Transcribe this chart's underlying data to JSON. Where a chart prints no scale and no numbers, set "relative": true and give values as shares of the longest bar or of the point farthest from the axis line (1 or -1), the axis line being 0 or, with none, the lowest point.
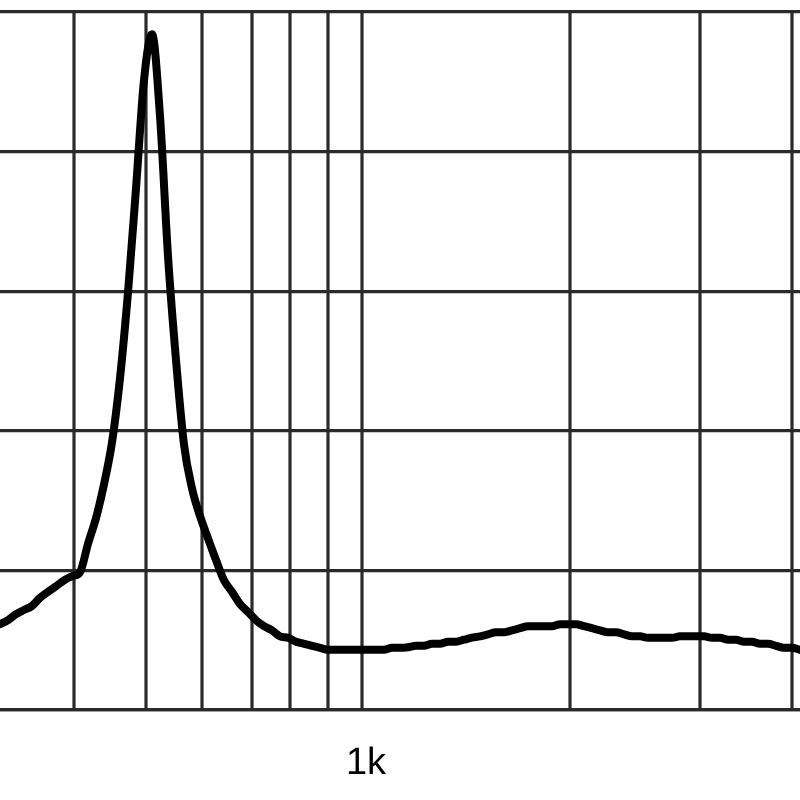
{
  "chart_data": {
    "type": "line",
    "relative": true,
    "grid": true,
    "tick_labels": false,
    "categories": [
      null,
      null,
      null,
      null,
      null,
      null,
      null,
      null,
      null,
      null,
      null,
      null,
      null,
      null,
      null,
      null,
      null,
      null,
      null,
      null,
      null,
      null,
      null,
      null,
      null,
      null,
      null,
      null,
      null,
      null,
      null,
      null,
      null,
      null,
      null,
      null,
      null,
      null,
      null,
      null,
      null,
      null,
      null,
      null,
      null,
      null,
      null,
      null,
      null,
      null,
      null,
      null,
      null,
      null,
      null,
      null,
      null,
      null,
      null,
      null,
      null,
      null,
      null,
      null,
      null,
      null,
      null,
      null,
      null,
      null,
      null,
      null,
      null,
      null,
      null,
      null,
      null,
      null,
      null,
      null,
      null,
      null,
      null,
      null,
      null,
      null,
      null,
      null,
      null,
      null,
      null,
      null,
      null,
      null,
      null,
      null,
      null,
      null,
      null,
      null,
      null
    ],
    "series": [
      {
        "color": "#000000",
        "values": [
          0.127,
          0.133,
          0.142,
          0.148,
          0.154,
          0.166,
          0.175,
          0.183,
          0.192,
          0.198,
          0.204,
          0.246,
          0.284,
          0.334,
          0.396,
          0.491,
          0.618,
          0.772,
          0.932,
          1,
          0.879,
          0.672,
          0.518,
          0.393,
          0.328,
          0.287,
          0.254,
          0.222,
          0.192,
          0.175,
          0.157,
          0.145,
          0.133,
          0.124,
          0.118,
          0.109,
          0.107,
          0.101,
          0.098,
          0.095,
          0.092,
          0.089,
          0.089,
          0.089,
          0.089,
          0.089,
          0.089,
          0.089,
          0.089,
          0.092,
          0.092,
          0.093,
          0.095,
          0.095,
          0.098,
          0.098,
          0.101,
          0.101,
          0.104,
          0.107,
          0.109,
          0.112,
          0.115,
          0.115,
          0.118,
          0.121,
          0.124,
          0.124,
          0.124,
          0.124,
          0.127,
          0.127,
          0.127,
          0.124,
          0.121,
          0.118,
          0.115,
          0.115,
          0.112,
          0.109,
          0.109,
          0.107,
          0.107,
          0.107,
          0.107,
          0.109,
          0.109,
          0.109,
          0.109,
          0.107,
          0.107,
          0.104,
          0.104,
          0.101,
          0.101,
          0.098,
          0.098,
          0.095,
          0.092,
          0.092,
          0.089
        ]
      }
    ],
    "annotations": [
      "1k"
    ]
  }
}
